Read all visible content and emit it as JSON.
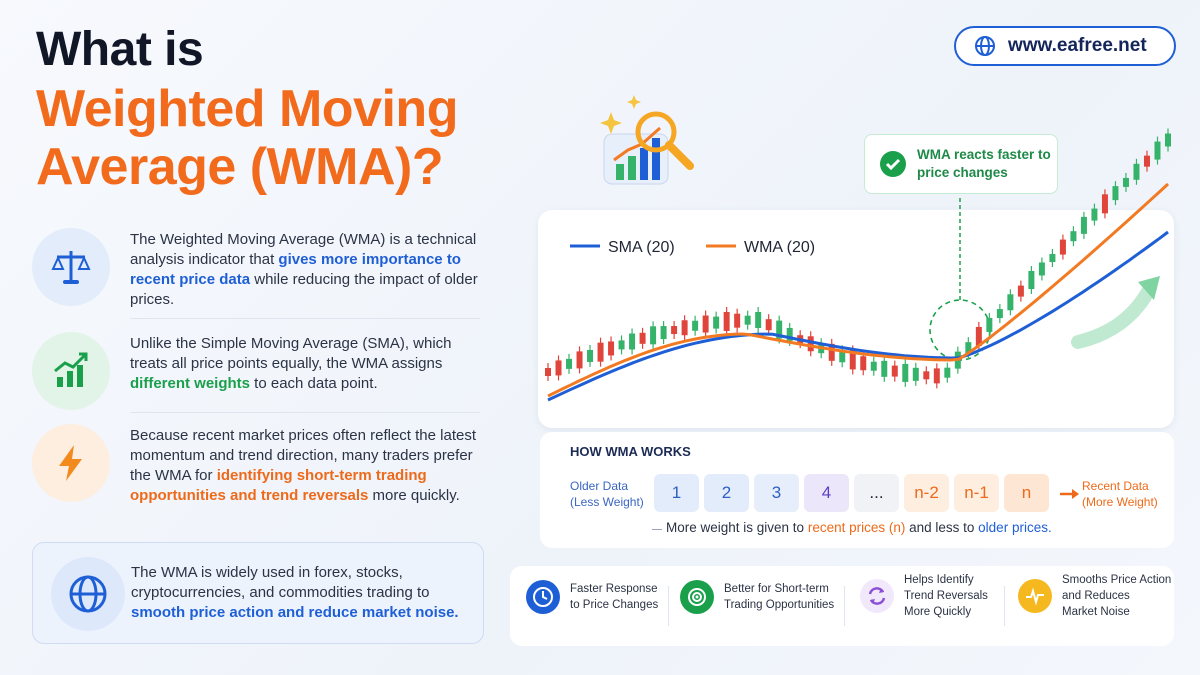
{
  "header": {
    "line1": "What is",
    "line2": "Weighted Moving",
    "line3": "Average (WMA)?"
  },
  "website": {
    "label": "www.eafree.net"
  },
  "points": [
    {
      "pre": "The Weighted Moving Average (WMA) is a technical analysis indicator that ",
      "highlight": "gives more importance to recent price data",
      "post": " while reducing the impact of older prices."
    },
    {
      "pre": "Unlike the Simple Moving Average (SMA), which treats all price points equally, the WMA assigns ",
      "highlight": "different weights",
      "post": " to each data point."
    },
    {
      "pre": "Because recent market prices often reflect the latest momentum and trend direction, many traders prefer the WMA for ",
      "highlight": "identifying short-term trading opportunities and trend reversals",
      "post": " more quickly."
    },
    {
      "pre": "The WMA is widely used in forex, stocks, cryptocurrencies, and commodities trading to ",
      "highlight": "smooth price action and reduce market noise.",
      "post": ""
    }
  ],
  "chart": {
    "legend_sma": "SMA (20)",
    "legend_wma": "WMA (20)",
    "callout": "WMA reacts faster to price changes",
    "sma_color": "#1f5fd6",
    "wma_color": "#f27a22",
    "up_color": "#36b36a",
    "down_color": "#e0453b"
  },
  "how": {
    "title": "HOW WMA WORKS",
    "older_label_1": "Older Data",
    "older_label_2": "(Less Weight)",
    "recent_label_1": "Recent Data",
    "recent_label_2": "(More Weight)",
    "cells": [
      "1",
      "2",
      "3",
      "4",
      "...",
      "n-2",
      "n-1",
      "n"
    ],
    "foot_pre": "More weight is given to ",
    "foot_recent": "recent prices (n)",
    "foot_mid": " and less to ",
    "foot_older": "older prices."
  },
  "features": [
    {
      "line1": "Faster Response",
      "line2": "to Price Changes",
      "line3": ""
    },
    {
      "line1": "Better for Short-term",
      "line2": "Trading Opportunities",
      "line3": ""
    },
    {
      "line1": "Helps Identify",
      "line2": "Trend Reversals",
      "line3": "More Quickly"
    },
    {
      "line1": "Smooths Price Action",
      "line2": "and Reduces",
      "line3": "Market Noise"
    }
  ]
}
